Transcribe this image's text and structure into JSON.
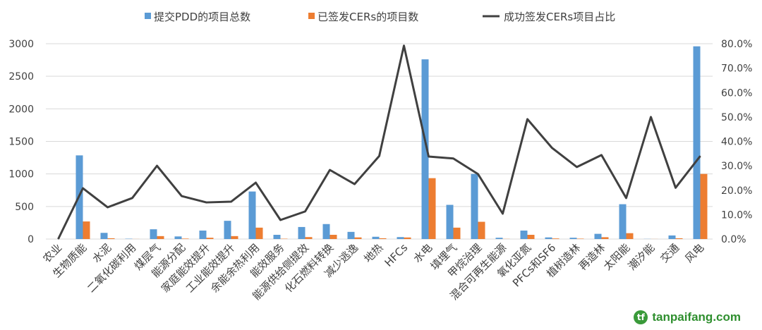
{
  "chart_data": {
    "type": "bar+line",
    "categories": [
      "农业",
      "生物质能",
      "水泥",
      "二氧化碳利用",
      "煤层气",
      "能源分配",
      "家庭能效提升",
      "工业能效提升",
      "余能余热利用",
      "能效服务",
      "能源供给侧提效",
      "化石燃料转换",
      "减少逃逸",
      "地热",
      "HFCs",
      "水电",
      "填埋气",
      "甲烷治理",
      "混合可再生能源",
      "氧化亚氮",
      "PFCs和SF6",
      "植树造林",
      "再造林",
      "太阳能",
      "潮汐能",
      "交通",
      "风电"
    ],
    "series": [
      {
        "name": "提交PDD的项目总数",
        "type": "bar",
        "axis": "left",
        "color": "#5B9BD5",
        "values": [
          0,
          1285,
          95,
          5,
          150,
          40,
          130,
          280,
          730,
          65,
          185,
          230,
          110,
          35,
          30,
          2760,
          525,
          1000,
          20,
          130,
          25,
          20,
          80,
          535,
          2,
          55,
          2960
        ]
      },
      {
        "name": "已签发CERs的项目数",
        "type": "bar",
        "axis": "left",
        "color": "#ED7D31",
        "values": [
          0,
          270,
          12,
          1,
          45,
          7,
          20,
          45,
          175,
          5,
          30,
          65,
          25,
          12,
          24,
          935,
          175,
          265,
          2,
          65,
          9,
          6,
          28,
          90,
          1,
          12,
          1000
        ]
      },
      {
        "name": "成功签发CERs项目占比",
        "type": "line",
        "axis": "right",
        "color": "#404040",
        "values": [
          0,
          20.8,
          13,
          16.8,
          30,
          17.6,
          15,
          15.3,
          23.1,
          7.8,
          11.3,
          28.3,
          22.5,
          34,
          79.2,
          33.8,
          33,
          26.6,
          10.4,
          49.1,
          37.3,
          29.5,
          34.4,
          16.8,
          50,
          21,
          34
        ]
      }
    ],
    "y_left": {
      "ylim": [
        0,
        3000
      ],
      "ticks": [
        "0",
        "500",
        "1000",
        "1500",
        "2000",
        "2500",
        "3000"
      ]
    },
    "y_right": {
      "ylim": [
        0,
        80
      ],
      "ticks": [
        "0.0%",
        "10.0%",
        "20.0%",
        "30.0%",
        "40.0%",
        "50.0%",
        "60.0%",
        "70.0%",
        "80.0%"
      ]
    },
    "grid": true,
    "legend": "top"
  },
  "watermark": "tanpaifang.com",
  "watermark_logo": "tf"
}
